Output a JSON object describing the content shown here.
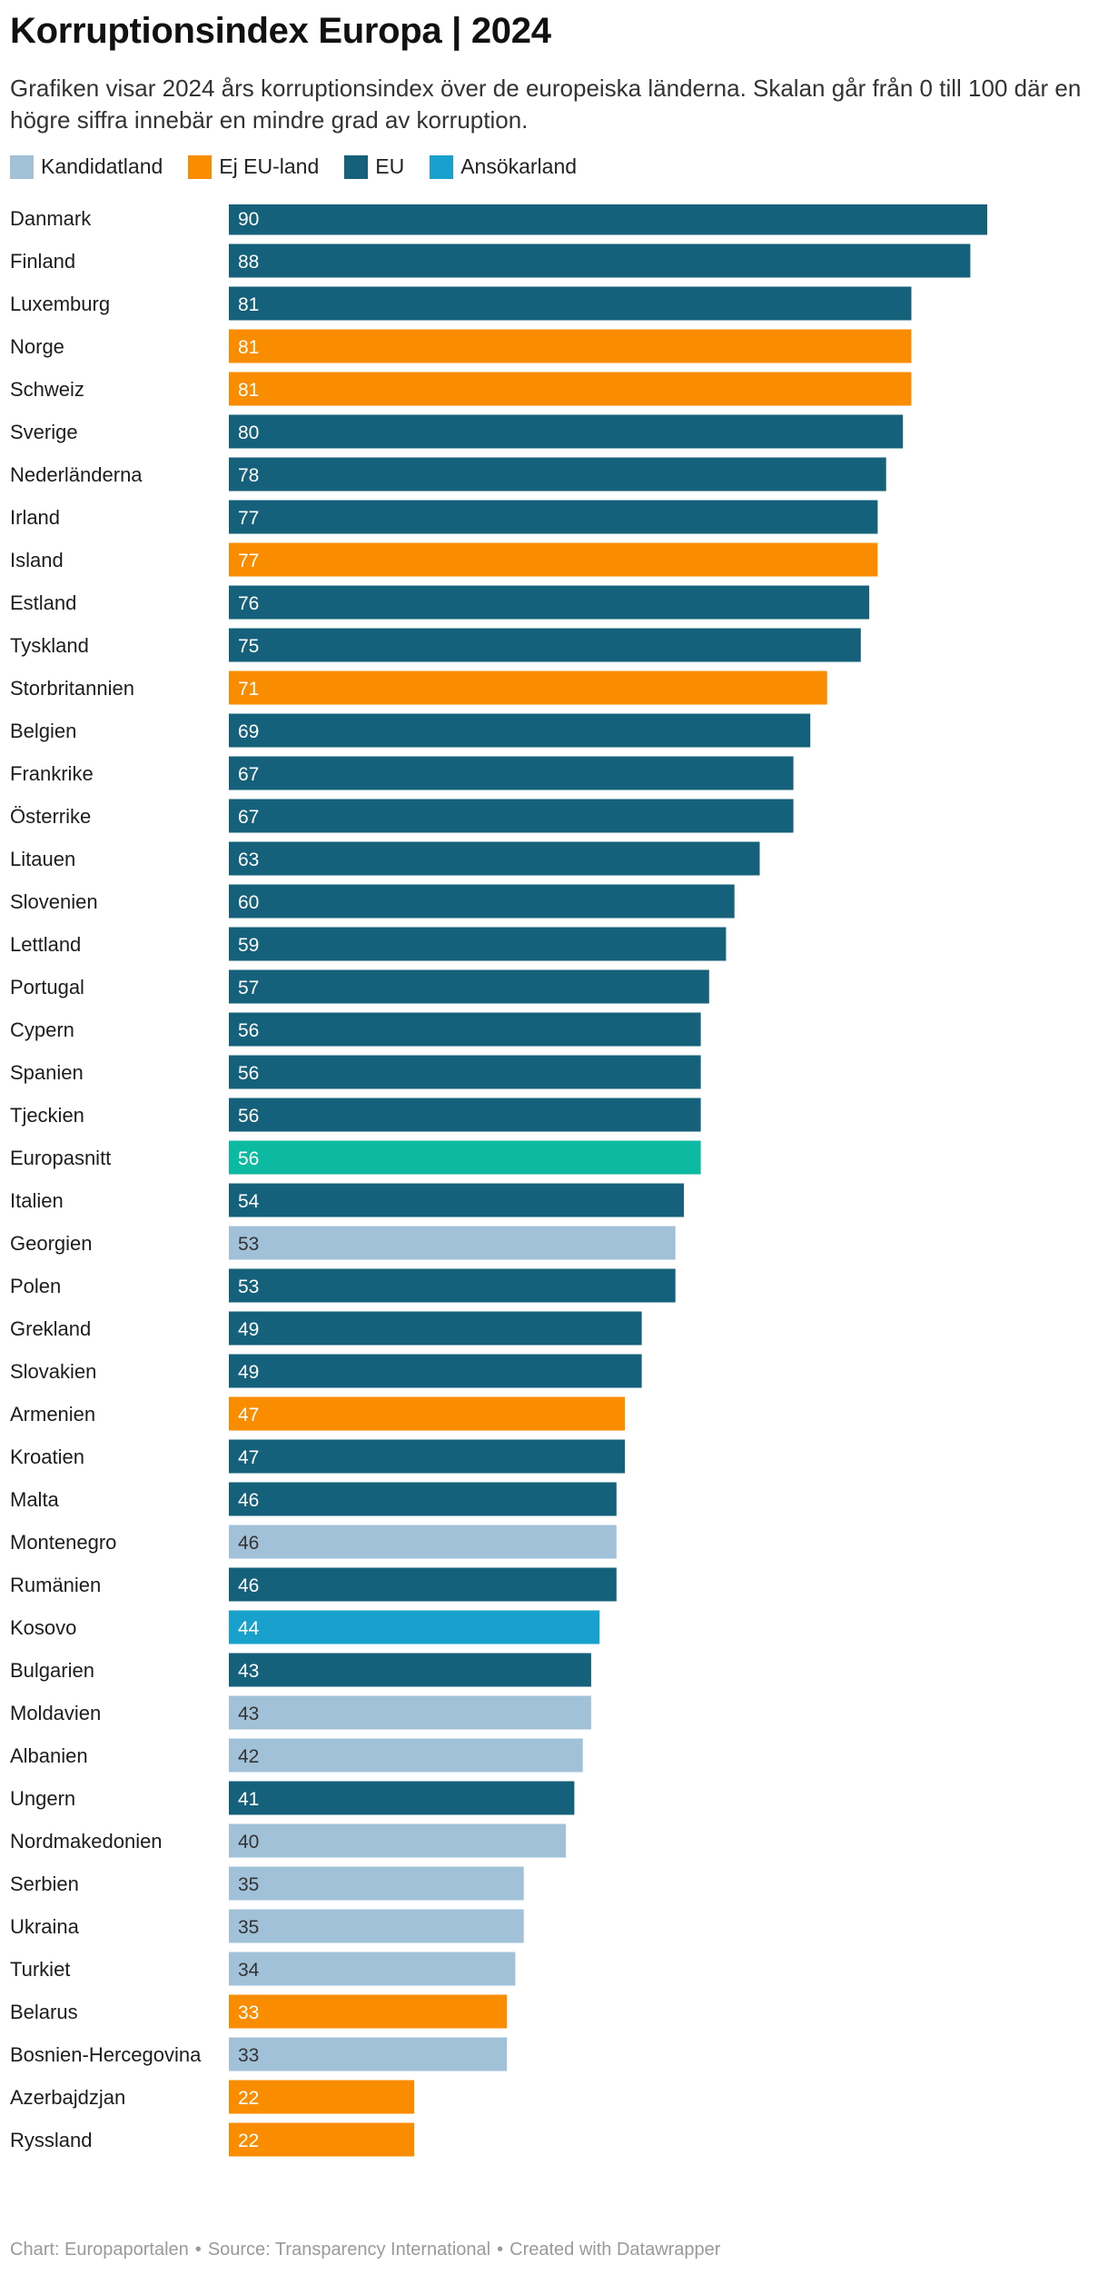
{
  "title": "Korruptionsindex Europa | 2024",
  "subtitle": "Grafiken visar 2024 års korruptionsindex över de europeiska länderna. Skalan går från 0 till 100 där en högre siffra innebär en mindre grad av korruption.",
  "legend": [
    {
      "label": "Kandidatland",
      "color": "#a1c1d9"
    },
    {
      "label": "Ej EU-land",
      "color": "#fa8c00"
    },
    {
      "label": "EU",
      "color": "#15607a"
    },
    {
      "label": "Ansökarland",
      "color": "#18a1cd"
    }
  ],
  "footer": {
    "chart": "Chart: Europaportalen",
    "source": "Source: Transparency International",
    "created": "Created with Datawrapper",
    "separator": "•"
  },
  "chart_data": {
    "type": "bar",
    "orientation": "horizontal",
    "title": "Korruptionsindex Europa | 2024",
    "xlim": [
      0,
      100
    ],
    "categories": [
      "Danmark",
      "Finland",
      "Luxemburg",
      "Norge",
      "Schweiz",
      "Sverige",
      "Nederländerna",
      "Irland",
      "Island",
      "Estland",
      "Tyskland",
      "Storbritannien",
      "Belgien",
      "Frankrike",
      "Österrike",
      "Litauen",
      "Slovenien",
      "Lettland",
      "Portugal",
      "Cypern",
      "Spanien",
      "Tjeckien",
      "Europasnitt",
      "Italien",
      "Georgien",
      "Polen",
      "Grekland",
      "Slovakien",
      "Armenien",
      "Kroatien",
      "Malta",
      "Montenegro",
      "Rumänien",
      "Kosovo",
      "Bulgarien",
      "Moldavien",
      "Albanien",
      "Ungern",
      "Nordmakedonien",
      "Serbien",
      "Ukraina",
      "Turkiet",
      "Belarus",
      "Bosnien-Hercegovina",
      "Azerbajdzjan",
      "Ryssland"
    ],
    "values": [
      90,
      88,
      81,
      81,
      81,
      80,
      78,
      77,
      77,
      76,
      75,
      71,
      69,
      67,
      67,
      63,
      60,
      59,
      57,
      56,
      56,
      56,
      56,
      54,
      53,
      53,
      49,
      49,
      47,
      47,
      46,
      46,
      46,
      44,
      43,
      43,
      42,
      41,
      40,
      35,
      35,
      34,
      33,
      33,
      22,
      22
    ],
    "groups": [
      "EU",
      "EU",
      "EU",
      "Ej EU-land",
      "Ej EU-land",
      "EU",
      "EU",
      "EU",
      "Ej EU-land",
      "EU",
      "EU",
      "Ej EU-land",
      "EU",
      "EU",
      "EU",
      "EU",
      "EU",
      "EU",
      "EU",
      "EU",
      "EU",
      "EU",
      "Europasnitt",
      "EU",
      "Kandidatland",
      "EU",
      "EU",
      "EU",
      "Ej EU-land",
      "EU",
      "EU",
      "Kandidatland",
      "EU",
      "Ansökarland",
      "EU",
      "Kandidatland",
      "Kandidatland",
      "EU",
      "Kandidatland",
      "Kandidatland",
      "Kandidatland",
      "Kandidatland",
      "Ej EU-land",
      "Kandidatland",
      "Ej EU-land",
      "Ej EU-land"
    ],
    "group_colors": {
      "EU": "#15607a",
      "Ej EU-land": "#fa8c00",
      "Kandidatland": "#a1c1d9",
      "Ansökarland": "#18a1cd",
      "Europasnitt": "#0bbaa0"
    },
    "label_colors": {
      "EU": "#ffffff",
      "Ej EU-land": "#ffffff",
      "Kandidatland": "#333333",
      "Ansökarland": "#ffffff",
      "Europasnitt": "#ffffff"
    }
  }
}
